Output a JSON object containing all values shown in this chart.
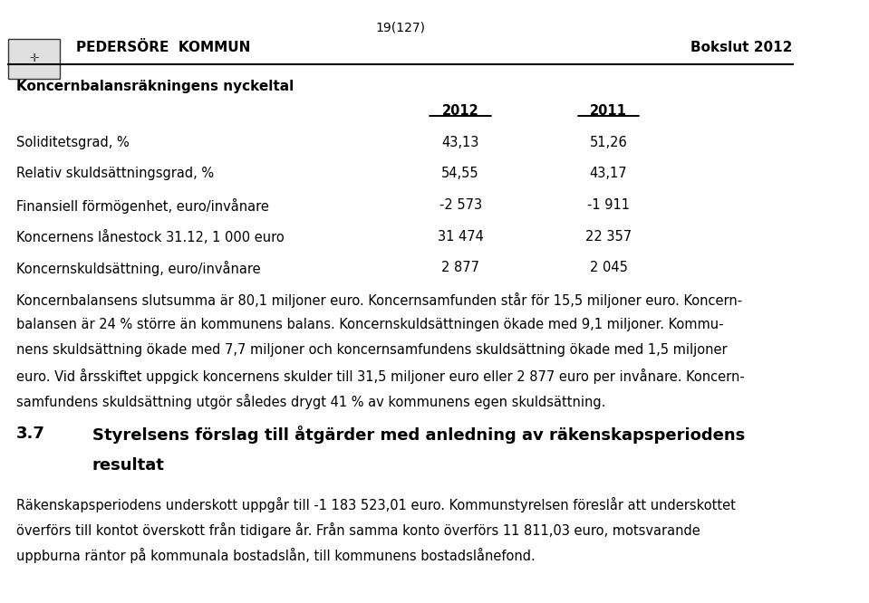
{
  "page_number": "19(127)",
  "header_left": "PEDERSÖRE  KOMMUN",
  "header_right": "Bokslut 2012",
  "section_title": "Koncernbalansräkningens nyckeltal",
  "col_headers": [
    "2012",
    "2011"
  ],
  "table_rows": [
    [
      "Soliditetsgrad, %",
      "43,13",
      "51,26"
    ],
    [
      "Relativ skuldsättningsgrad, %",
      "54,55",
      "43,17"
    ],
    [
      "Finansiell förmögenhet, euro/invånare",
      "-2 573",
      "-1 911"
    ],
    [
      "Koncernens lånestock 31.12, 1 000 euro",
      "31 474",
      "22 357"
    ],
    [
      "Koncernskuldsättning, euro/invånare",
      "2 877",
      "2 045"
    ]
  ],
  "body_text": "Koncernbalansens slutsumma är 80,1 miljoner euro. Koncernsamfunden står för 15,5 miljoner euro. Koncern-\nbalansen är 24 % större än kommunens balans. Koncernskuldsättningen ökade med 9,1 miljoner. Kommu-\nnens skuldsättning ökade med 7,7 miljoner och koncernsamfundens skuldsättning ökade med 1,5 miljoner\neuro. Vid årsskiftet uppgick koncernens skulder till 31,5 miljoner euro eller 2 877 euro per invånare. Koncern-\nsamfundens skuldsättning utgör således drygt 41 % av kommunens egen skuldsättning.",
  "section2_number": "3.7",
  "section2_title": "Styrelsens förslag till åtgärder med anledning av räkenskapsperiodens\nresultat",
  "body_text2": "Räkenskapsperiodens underskott uppgår till -1 183 523,01 euro. Kommunstyrelsen föreslår att underskottet\növerförs till kontot överskott från tidigare år. Från samma konto överförs 11 811,03 euro, motsvarande\nuppburna räntor på kommunala bostadslån, till kommunens bostadslånefond.",
  "bg_color": "#ffffff",
  "text_color": "#000000",
  "header_font_size": 11,
  "body_font_size": 10.5,
  "table_font_size": 10.5,
  "section_title_font_size": 11,
  "section2_title_font_size": 13
}
